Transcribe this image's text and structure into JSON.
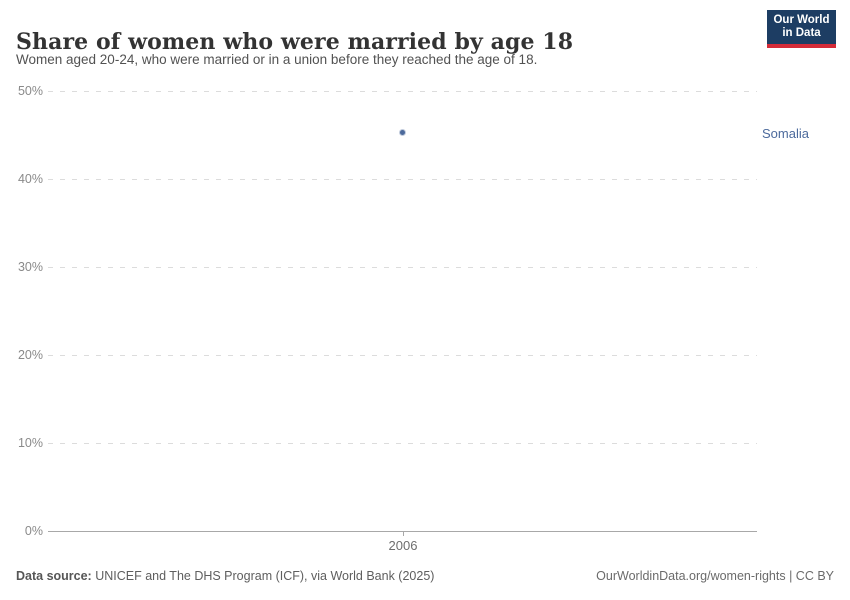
{
  "header": {
    "title": "Share of women who were married by age 18",
    "subtitle": "Women aged 20-24, who were married or in a union before they reached the age of 18.",
    "logo": {
      "line1": "Our World",
      "line2": "in Data"
    }
  },
  "chart_data": {
    "type": "scatter",
    "title": "Share of women who were married by age 18",
    "series": [
      {
        "name": "Somalia",
        "x": [
          2006
        ],
        "values": [
          45.3
        ]
      }
    ],
    "xlabel": "",
    "ylabel": "",
    "xticks": [
      "2006"
    ],
    "yticks": [
      "0%",
      "10%",
      "20%",
      "30%",
      "40%",
      "50%"
    ],
    "ylim": [
      0,
      50
    ],
    "grid": "horizontal-dashed",
    "legend_position": "right-entity-label",
    "point_color": "#4c6a9c"
  },
  "axis": {
    "yticks_desc": [
      "50%",
      "40%",
      "30%",
      "20%",
      "10%",
      "0%"
    ],
    "xtick": "2006"
  },
  "annotations": {
    "entity_label": "Somalia"
  },
  "footer": {
    "source_label": "Data source:",
    "source_text": " UNICEF and The DHS Program (ICF), via World Bank (2025)",
    "credit": "OurWorldinData.org/women-rights | CC BY"
  },
  "colors": {
    "accent_blue": "#4c6a9c",
    "logo_navy": "#1d3d63",
    "logo_red": "#d42b38",
    "gridline": "#dcdcdc",
    "axis": "#a8a8a8"
  }
}
